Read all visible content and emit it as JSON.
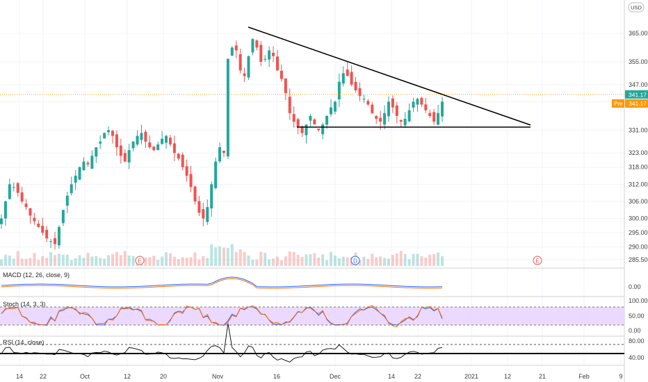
{
  "chart_data": {
    "type": "candlestick",
    "currency_badge": "USD",
    "colors": {
      "up": "#26a69a",
      "down": "#ef5350",
      "trendline": "#000000",
      "price_line": "#ff9800",
      "rsi": "#1a1a1a",
      "stoch_band": "#e0c4ff",
      "stoch_k": "#2962ff",
      "stoch_d": "#ff6d00"
    },
    "price_axis": {
      "ticks": [
        365.0,
        355.0,
        347.0,
        341.0,
        331.0,
        323.0,
        318.0,
        312.0,
        306.0,
        300.0,
        295.0,
        290.0,
        285.5
      ],
      "tick_labels": [
        "365.00",
        "355.00",
        "347.00",
        "",
        "331.00",
        "323.00",
        "318.00",
        "312.00",
        "306.00",
        "300.00",
        "295.00",
        "290.00",
        "285.50"
      ],
      "current_label": "341.17",
      "pre_label": "Pre",
      "pre_value": "341.17"
    },
    "time_axis": {
      "labels": [
        "14",
        "22",
        "Oct",
        "12",
        "20",
        "Nov",
        "16",
        "Dec",
        "14",
        "22",
        "2021",
        "12",
        "21",
        "Feb",
        "9"
      ]
    },
    "candles": [
      300,
      306,
      312,
      311,
      309,
      306,
      304,
      301,
      299,
      297,
      295,
      293,
      292,
      291,
      297,
      303,
      308,
      312,
      315,
      318,
      320,
      319,
      322,
      325,
      327,
      330,
      331,
      329,
      325,
      322,
      320,
      324,
      327,
      329,
      330,
      327,
      325,
      324,
      326,
      328,
      329,
      326,
      323,
      321,
      318,
      315,
      311,
      306,
      302,
      300,
      304,
      312,
      320,
      325,
      323,
      356,
      360,
      359,
      352,
      350,
      357,
      363,
      360,
      355,
      356,
      359,
      357,
      352,
      349,
      344,
      337,
      334,
      332,
      330,
      333,
      336,
      333,
      331,
      333,
      336,
      339,
      341,
      348,
      351,
      350,
      347,
      345,
      343,
      342,
      340,
      337,
      335,
      334,
      337,
      341,
      339,
      336,
      334,
      335,
      338,
      341,
      342,
      340,
      338,
      336,
      334,
      337,
      341
    ],
    "events": [
      "E",
      "D",
      "E"
    ],
    "indicators": {
      "macd": {
        "title": "MACD (12, 26, close, 9)",
        "axis": [
          "0.00"
        ]
      },
      "stoch": {
        "title": "Stoch (14, 3, 3)",
        "axis": [
          "100.00",
          "50.00",
          "0.00"
        ]
      },
      "rsi": {
        "title": "RSI (14, close)",
        "axis": [
          "80.00",
          "40.00"
        ]
      }
    }
  }
}
